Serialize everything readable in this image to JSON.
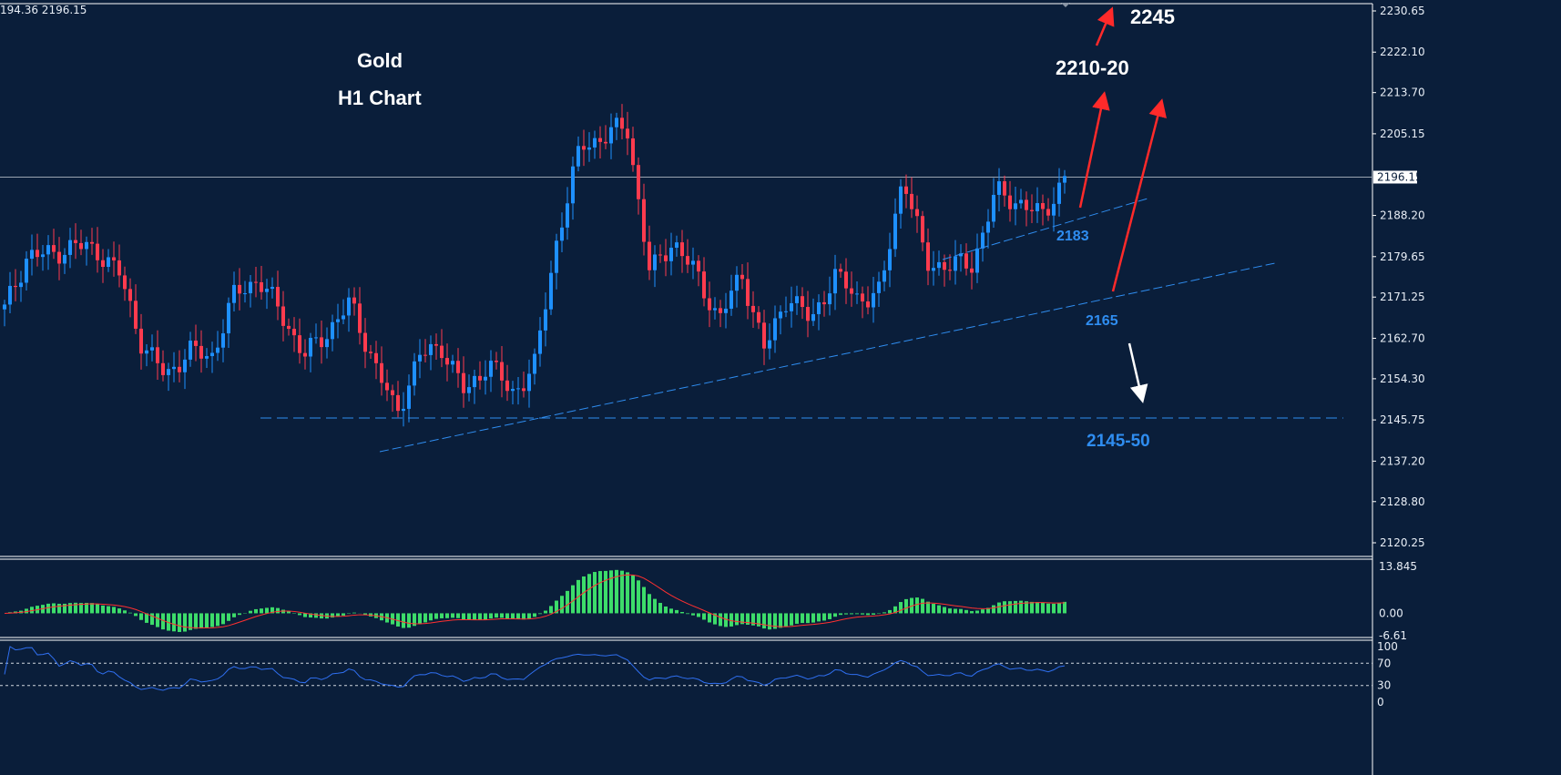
{
  "header": {
    "info": "194.36 2196.15"
  },
  "annotations": {
    "title": "Gold",
    "subtitle": "H1 Chart",
    "target_high": "2245",
    "target_mid": "2210-20",
    "support_upper": "2183",
    "support_lower": "2165",
    "target_low": "2145-50"
  },
  "colors": {
    "background": "#0a1e3a",
    "bull": "#1e90ff",
    "bear": "#ff3b4e",
    "line": "#2f8df0",
    "arrow": "#ff2a2a",
    "macd_hist": "#3ddc6a",
    "signal": "#ff3030",
    "rsi": "#2f6ff0"
  },
  "chart_data": {
    "type": "candlestick",
    "symbol": "Gold",
    "timeframe": "H1",
    "current_price": 2196.15,
    "price_axis_ticks": [
      "2230.65",
      "2222.10",
      "2213.70",
      "2205.15",
      "2196.15",
      "2188.20",
      "2179.65",
      "2171.25",
      "2162.70",
      "2154.30",
      "2145.75",
      "2137.20",
      "2128.80",
      "2120.25"
    ],
    "ylim": [
      2120.25,
      2230.65
    ],
    "close_path": [
      2168.6,
      2180,
      2180,
      2182,
      2181,
      2176,
      2161,
      2155,
      2160,
      2159,
      2172,
      2175,
      2168,
      2159,
      2164,
      2170,
      2158,
      2147,
      2159,
      2161,
      2151,
      2158,
      2151,
      2157,
      2184,
      2202.6,
      2204.5,
      2207,
      2176,
      2183,
      2176,
      2166.7,
      2176,
      2160,
      2172,
      2166,
      2176,
      2171,
      2172,
      2197,
      2178,
      2178,
      2178,
      2193,
      2191,
      2188,
      2196
    ],
    "macd": {
      "ticks": [
        "13.845",
        "0.00",
        "-6.61"
      ],
      "range": [
        -6.61,
        13.845
      ]
    },
    "rsi": {
      "ticks": [
        "100",
        "70",
        "30",
        "0"
      ],
      "levels": [
        70,
        30
      ]
    }
  }
}
